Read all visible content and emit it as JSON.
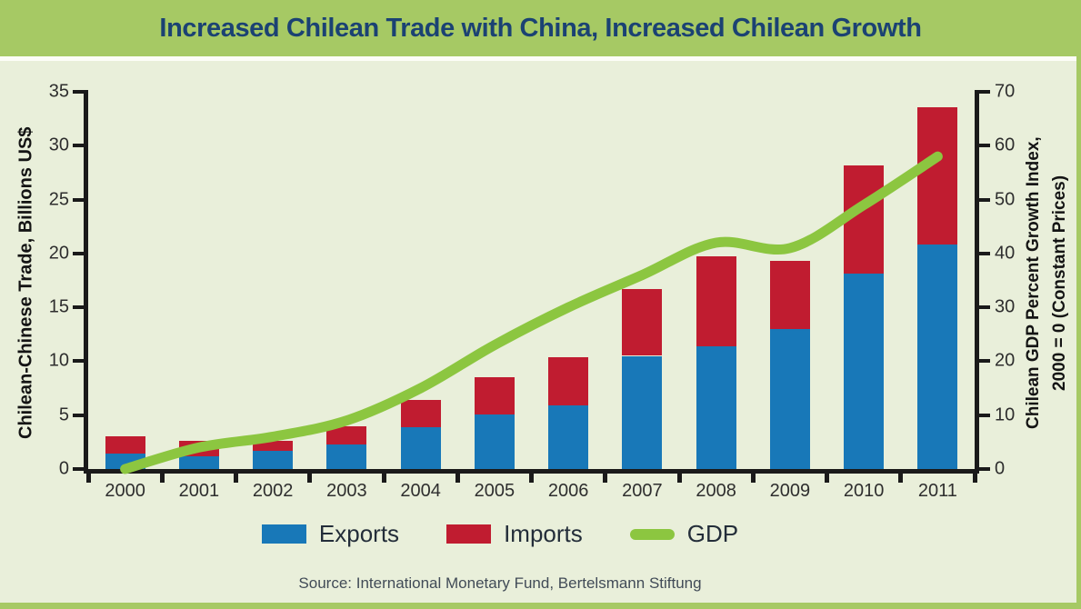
{
  "header": {
    "title": "Increased Chilean Trade with China, Increased Chilean Growth"
  },
  "chart_data": {
    "type": "bar",
    "subtype": "stacked-bars-with-line",
    "categories": [
      "2000",
      "2001",
      "2002",
      "2003",
      "2004",
      "2005",
      "2006",
      "2007",
      "2008",
      "2009",
      "2010",
      "2011"
    ],
    "series": [
      {
        "name": "Exports",
        "type": "bar",
        "stack": "trade",
        "axis": "left",
        "color": "#1878b8",
        "values": [
          1.4,
          1.2,
          1.7,
          2.3,
          3.9,
          5.1,
          5.9,
          10.5,
          11.4,
          13.0,
          18.1,
          20.8
        ]
      },
      {
        "name": "Imports",
        "type": "bar",
        "stack": "trade",
        "axis": "left",
        "color": "#c01c30",
        "values": [
          1.6,
          1.4,
          0.9,
          1.7,
          2.5,
          3.4,
          4.5,
          6.2,
          8.3,
          6.3,
          10.1,
          12.8
        ]
      },
      {
        "name": "GDP",
        "type": "line",
        "axis": "right",
        "color": "#8cc640",
        "values": [
          0,
          4,
          6,
          9,
          15,
          23,
          30,
          36,
          42,
          41,
          49,
          58
        ]
      }
    ],
    "left_axis": {
      "label": "Chilean-Chinese Trade, Billions US$",
      "min": 0,
      "max": 35,
      "tick_step": 5
    },
    "right_axis": {
      "label_line1": "Chilean GDP Percent Growth Index,",
      "label_line2": "2000 = 0 (Constant Prices)",
      "min": 0,
      "max": 70,
      "tick_step": 10
    },
    "grid": "off",
    "legend_position": "bottom",
    "title": "Increased Chilean Trade with China, Increased Chilean Growth"
  },
  "legend": {
    "exports": "Exports",
    "imports": "Imports",
    "gdp": "GDP"
  },
  "source": {
    "text": "Source: International Monetary Fund, Bertelsmann Stiftung"
  },
  "colors": {
    "band_green": "#a6c964",
    "panel_bg": "#e9efda",
    "title_text": "#1b4273",
    "axis_ink": "#1a1a1a",
    "exports_blue": "#1878b8",
    "imports_red": "#c01c30",
    "gdp_green": "#8cc640"
  }
}
